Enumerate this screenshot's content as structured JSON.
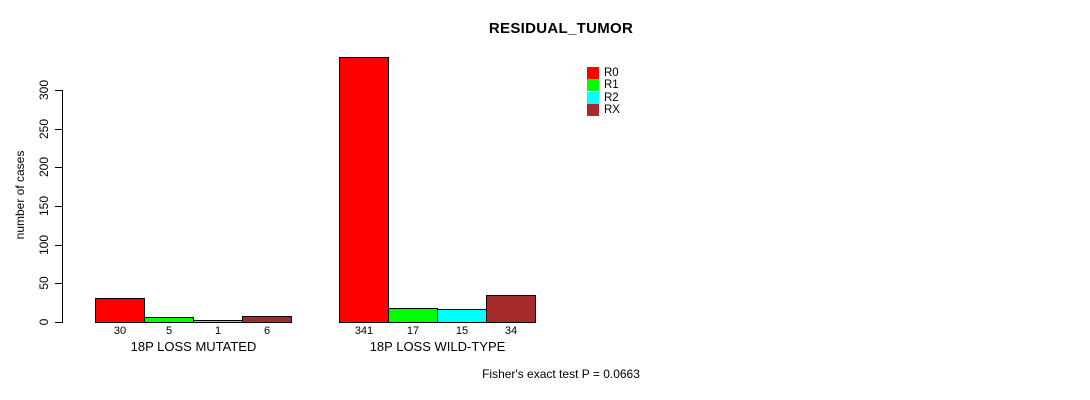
{
  "title": "RESIDUAL_TUMOR",
  "footer": "Fisher's exact test P = 0.0663",
  "chart_data": {
    "type": "bar",
    "title": "RESIDUAL_TUMOR",
    "xlabel": "",
    "ylabel": "number of cases",
    "categories": [
      "18P LOSS MUTATED",
      "18P LOSS WILD-TYPE"
    ],
    "series": [
      {
        "name": "R0",
        "color": "#ff0000",
        "values": [
          30,
          341
        ]
      },
      {
        "name": "R1",
        "color": "#00ff00",
        "values": [
          5,
          17
        ]
      },
      {
        "name": "R2",
        "color": "#00ffff",
        "values": [
          1,
          15
        ]
      },
      {
        "name": "RX",
        "color": "#a52a2a",
        "values": [
          6,
          34
        ]
      }
    ],
    "bar_value_labels": [
      [
        30,
        5,
        1,
        6
      ],
      [
        341,
        17,
        15,
        34
      ]
    ],
    "yticks": [
      0,
      50,
      100,
      150,
      200,
      250,
      300
    ],
    "ylim": [
      0,
      341
    ],
    "grid": false,
    "legend_position": "top-right",
    "bar_border_color": "#000000",
    "annotation": "Fisher's exact test P = 0.0663"
  }
}
